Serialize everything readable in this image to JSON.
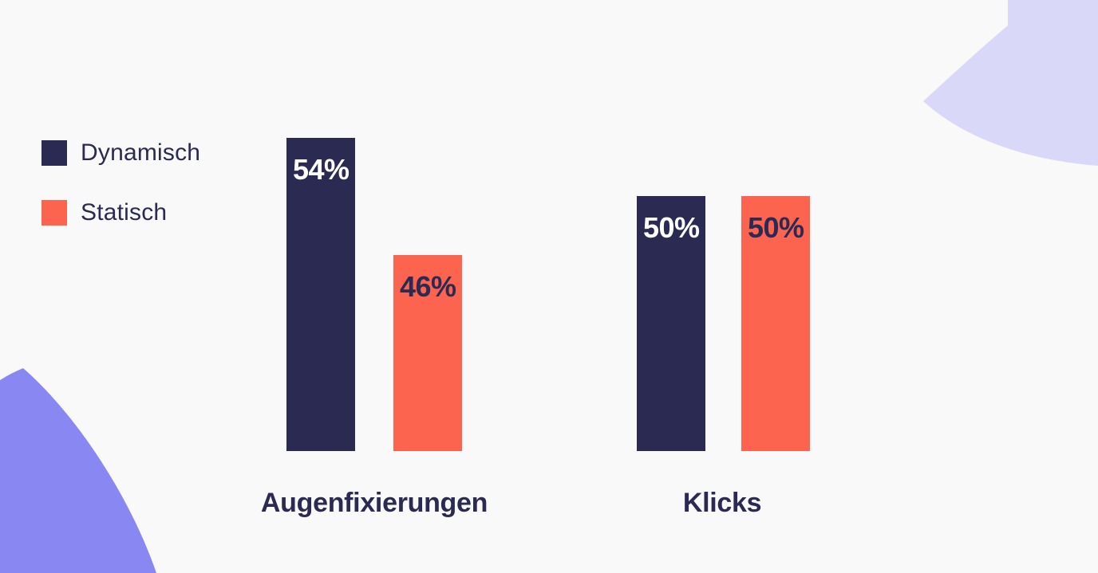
{
  "page": {
    "background_color": "#f9f9f9",
    "text_color": "#2b2a52"
  },
  "legend": {
    "items": [
      {
        "label": "Dynamisch",
        "color": "#2b2a52"
      },
      {
        "label": "Statisch",
        "color": "#fc6450"
      }
    ]
  },
  "chart_data": {
    "type": "bar",
    "title": "",
    "xlabel": "",
    "ylabel": "",
    "value_unit": "%",
    "categories": [
      "Augenfixierungen",
      "Klicks"
    ],
    "series": [
      {
        "name": "Dynamisch",
        "color": "#2b2a52",
        "values": [
          54,
          50
        ],
        "display_labels": [
          "54%",
          "50%"
        ],
        "label_color": "#ffffff"
      },
      {
        "name": "Statisch",
        "color": "#fc6450",
        "values": [
          46,
          50
        ],
        "display_labels": [
          "46%",
          "50%"
        ],
        "label_color": "#2b2a52"
      }
    ],
    "gridlines": false,
    "axes_shown": false,
    "legend_position": "left",
    "value_labels_inside_bars": true
  },
  "decorations": {
    "bottom_left_blob_color": "#8987f2",
    "top_right_blob_color": "#d9d8f8"
  }
}
